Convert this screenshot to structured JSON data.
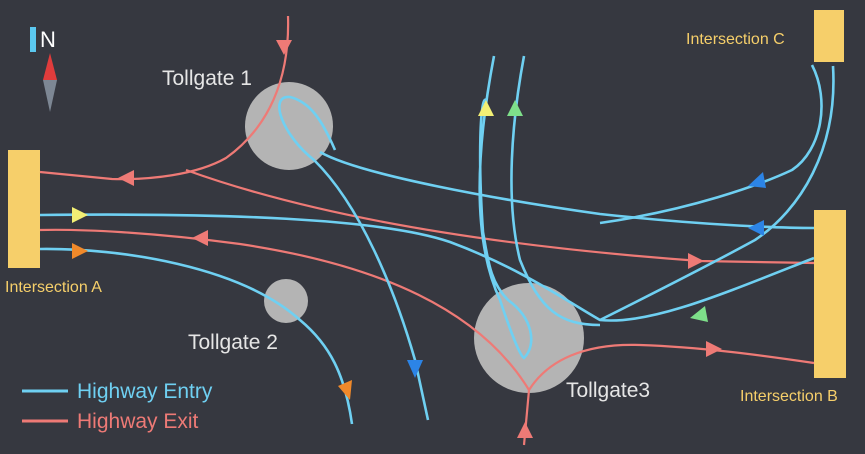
{
  "compass": {
    "label": "N",
    "icon": "north-arrow-icon"
  },
  "tollgates": [
    {
      "id": "tollgate-1",
      "label": "Tollgate 1"
    },
    {
      "id": "tollgate-2",
      "label": "Tollgate 2"
    },
    {
      "id": "tollgate-3",
      "label": "Tollgate3"
    }
  ],
  "intersections": [
    {
      "id": "intersection-a",
      "label": "Intersection A"
    },
    {
      "id": "intersection-b",
      "label": "Intersection B"
    },
    {
      "id": "intersection-c",
      "label": "Intersection C"
    }
  ],
  "legend": {
    "entry": {
      "label": "Highway Entry",
      "color": "#6fd0f2"
    },
    "exit": {
      "label": "Highway Exit",
      "color": "#ee7a76"
    }
  },
  "colors": {
    "background": "#363840",
    "entry": "#6fd0f2",
    "exit": "#ee7a76",
    "tollgate": "#b4b4b4",
    "intersection": "#f6cf6a",
    "arrow_yellow": "#f2ef74",
    "arrow_orange": "#f0892a",
    "arrow_blue": "#2c84e6",
    "arrow_green": "#7ee08a",
    "arrow_red": "#ee7a76"
  }
}
